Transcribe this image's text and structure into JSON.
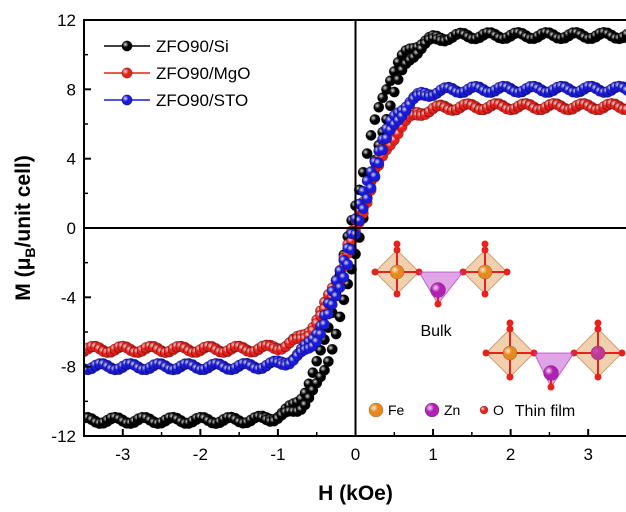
{
  "chart_data": {
    "type": "scatter",
    "xlabel": "H (kOe)",
    "ylabel": {
      "prefix": "M (",
      "mu": "μ",
      "sub": "B",
      "suffix": "/unit cell)"
    },
    "xlim": [
      -3.5,
      3.5
    ],
    "ylim": [
      -12,
      12
    ],
    "xticks": [
      -3,
      -2,
      -1,
      0,
      1,
      2,
      3
    ],
    "yticks": [
      -12,
      -8,
      -4,
      0,
      4,
      8,
      12
    ],
    "grid": false,
    "legend_position": "top-left",
    "series": [
      {
        "name": "ZFO90/Si",
        "color": "#000000",
        "Ms": 11.1,
        "Hc": 0.85
      },
      {
        "name": "ZFO90/MgO",
        "color": "#e8211c",
        "Ms": 7.0,
        "Hc": 0.3
      },
      {
        "name": "ZFO90/STO",
        "color": "#1a1adb",
        "Ms": 8.0,
        "Hc": 0.42
      }
    ],
    "inset": {
      "bulk_label": "Bulk",
      "film_label": "Thin film",
      "atoms": [
        {
          "symbol": "Fe",
          "color": "#e8871e"
        },
        {
          "symbol": "Zn",
          "color": "#b21fb4"
        },
        {
          "symbol": "O",
          "color": "#e8211c"
        }
      ]
    }
  }
}
